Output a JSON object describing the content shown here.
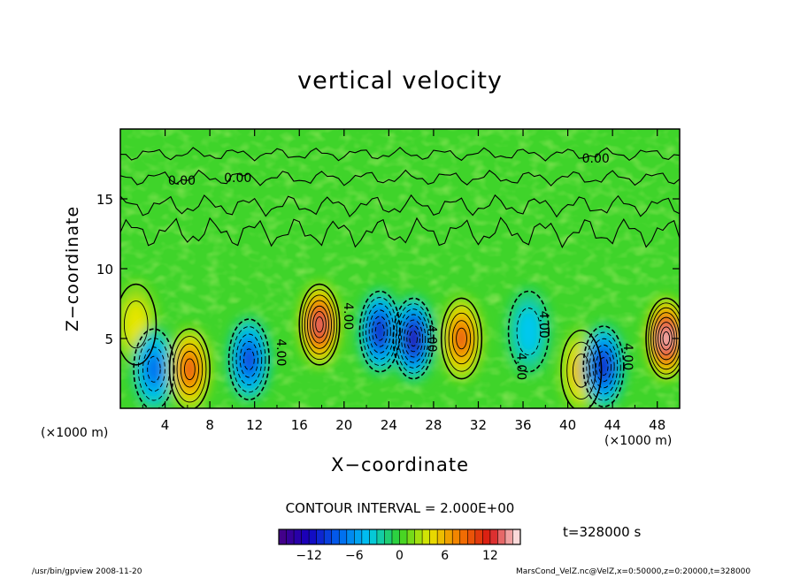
{
  "chart_data": {
    "type": "heatmap",
    "title": "vertical velocity",
    "xlabel": "X−coordinate",
    "ylabel": "Z−coordinate",
    "x_unit": "(×1000 m)",
    "xlim": [
      0,
      50
    ],
    "ylim": [
      0,
      20
    ],
    "x_ticks": [
      "4",
      "8",
      "12",
      "16",
      "20",
      "24",
      "28",
      "32",
      "36",
      "40",
      "44",
      "48"
    ],
    "y_ticks": [
      "5",
      "10",
      "15"
    ],
    "contour_interval": "CONTOUR INTERVAL = 2.000E+00",
    "contour_labels": [
      {
        "text": "0.00",
        "x": 5.5,
        "z": 16
      },
      {
        "text": "0.00",
        "x": 10.5,
        "z": 16.2
      },
      {
        "text": "0.00",
        "x": 42.5,
        "z": 17.6
      },
      {
        "text": "4.00",
        "x": 14,
        "z": 4
      },
      {
        "text": "4.00",
        "x": 20,
        "z": 6.6
      },
      {
        "text": "4.00",
        "x": 27.5,
        "z": 5
      },
      {
        "text": "4.00",
        "x": 35.5,
        "z": 3
      },
      {
        "text": "4.00",
        "x": 37.5,
        "z": 6
      },
      {
        "text": "4.00",
        "x": 45,
        "z": 3.7
      }
    ],
    "cells": [
      {
        "x": 1.4,
        "z": 6,
        "value": 4
      },
      {
        "x": 3.0,
        "z": 2.8,
        "value": -8
      },
      {
        "x": 6.2,
        "z": 2.8,
        "value": 10
      },
      {
        "x": 11.5,
        "z": 3.5,
        "value": -10
      },
      {
        "x": 17.8,
        "z": 6,
        "value": 14
      },
      {
        "x": 23.2,
        "z": 5.5,
        "value": -12
      },
      {
        "x": 26.2,
        "z": 5,
        "value": -14
      },
      {
        "x": 30.5,
        "z": 5,
        "value": 10
      },
      {
        "x": 36.5,
        "z": 5.5,
        "value": -4
      },
      {
        "x": 41.2,
        "z": 2.7,
        "value": 6
      },
      {
        "x": 43.2,
        "z": 3,
        "value": -12
      },
      {
        "x": 48.8,
        "z": 5,
        "value": 16
      }
    ],
    "colorbar": {
      "min": -16,
      "max": 16,
      "ticks": [
        "−12",
        "−6",
        "0",
        "6",
        "12"
      ]
    },
    "time_label": "t=328000 s"
  },
  "footer": {
    "left": "/usr/bin/gpview  2008-11-20",
    "right": "MarsCond_VelZ.nc@VelZ,x=0:50000,z=0:20000,t=328000"
  }
}
